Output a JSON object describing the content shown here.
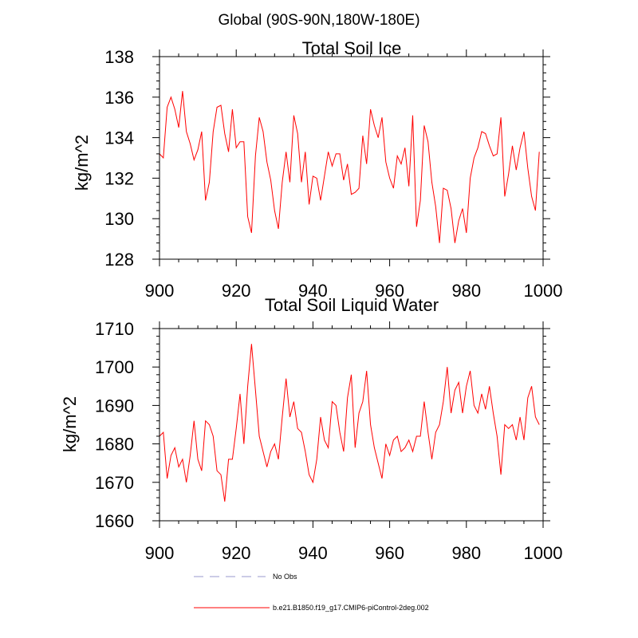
{
  "figure": {
    "suptitle": "Global (90S-90N,180W-180E)"
  },
  "chart_data": [
    {
      "type": "line",
      "title": "Total Soil Ice",
      "xlabel": "",
      "ylabel": "kg/m^2",
      "xlim": [
        900,
        1000
      ],
      "ylim": [
        128,
        138
      ],
      "xticks": [
        900,
        920,
        940,
        960,
        980,
        1000
      ],
      "yticks": [
        128,
        130,
        132,
        134,
        136,
        138
      ],
      "x_start": 900,
      "series": [
        {
          "name": "b.e21.B1850.f19_g17.CMIP6-piControl-2deg.002",
          "color": "#ff0000",
          "values": [
            133.2,
            133.0,
            135.5,
            136.0,
            135.4,
            134.5,
            136.3,
            134.3,
            133.7,
            132.9,
            133.4,
            134.3,
            130.9,
            131.8,
            134.3,
            135.5,
            135.6,
            134.2,
            133.3,
            135.4,
            133.5,
            133.8,
            133.8,
            130.1,
            129.3,
            133.1,
            135.0,
            134.3,
            132.8,
            131.9,
            130.4,
            129.5,
            131.8,
            133.3,
            131.8,
            135.1,
            134.2,
            131.8,
            133.3,
            130.7,
            132.1,
            132.0,
            130.9,
            132.1,
            133.3,
            132.6,
            133.2,
            133.2,
            131.9,
            132.7,
            131.2,
            131.3,
            131.5,
            134.1,
            132.7,
            135.4,
            134.6,
            134.0,
            135.0,
            132.8,
            132.0,
            131.5,
            133.1,
            132.7,
            133.5,
            131.6,
            135.1,
            129.6,
            130.9,
            134.6,
            133.8,
            131.8,
            130.6,
            128.8,
            131.5,
            131.4,
            130.5,
            128.8,
            129.9,
            130.5,
            129.3,
            132.0,
            133.0,
            133.5,
            134.3,
            134.2,
            133.6,
            133.1,
            133.2,
            135.0,
            131.1,
            132.2,
            133.6,
            132.4,
            133.5,
            134.3,
            132.5,
            131.1,
            130.4,
            133.3
          ]
        }
      ]
    },
    {
      "type": "line",
      "title": "Total Soil Liquid Water",
      "xlabel": "",
      "ylabel": "kg/m^2",
      "xlim": [
        900,
        1000
      ],
      "ylim": [
        1660,
        1710
      ],
      "xticks": [
        900,
        920,
        940,
        960,
        980,
        1000
      ],
      "yticks": [
        1660,
        1670,
        1680,
        1690,
        1700,
        1710
      ],
      "x_start": 900,
      "series": [
        {
          "name": "b.e21.B1850.f19_g17.CMIP6-piControl-2deg.002",
          "color": "#ff0000",
          "values": [
            1682,
            1683,
            1671,
            1677,
            1679,
            1674,
            1676,
            1670,
            1677,
            1686,
            1676,
            1673,
            1686,
            1685,
            1682,
            1673,
            1672,
            1665,
            1676,
            1676,
            1684,
            1693,
            1680,
            1695,
            1706,
            1694,
            1682,
            1678,
            1674,
            1678,
            1680,
            1676,
            1687,
            1697,
            1687,
            1691,
            1684,
            1683,
            1678,
            1672,
            1670,
            1676,
            1687,
            1681,
            1679,
            1691,
            1690,
            1683,
            1678,
            1692,
            1698,
            1679,
            1688,
            1691,
            1699,
            1685,
            1679,
            1675,
            1671,
            1680,
            1677,
            1681,
            1682,
            1678,
            1679,
            1681,
            1678,
            1682,
            1682,
            1691,
            1683,
            1676,
            1683,
            1685,
            1691,
            1700,
            1688,
            1694,
            1696,
            1688,
            1695,
            1699,
            1690,
            1688,
            1693,
            1689,
            1695,
            1688,
            1682,
            1672,
            1685,
            1684,
            1685,
            1681,
            1687,
            1681,
            1692,
            1695,
            1687,
            1685
          ]
        }
      ]
    }
  ],
  "legend": {
    "items": [
      {
        "label": "No Obs",
        "color": "#9999cc",
        "style": "dashed"
      },
      {
        "label": "b.e21.B1850.f19_g17.CMIP6-piControl-2deg.002",
        "color": "#ff0000",
        "style": "solid"
      }
    ]
  }
}
